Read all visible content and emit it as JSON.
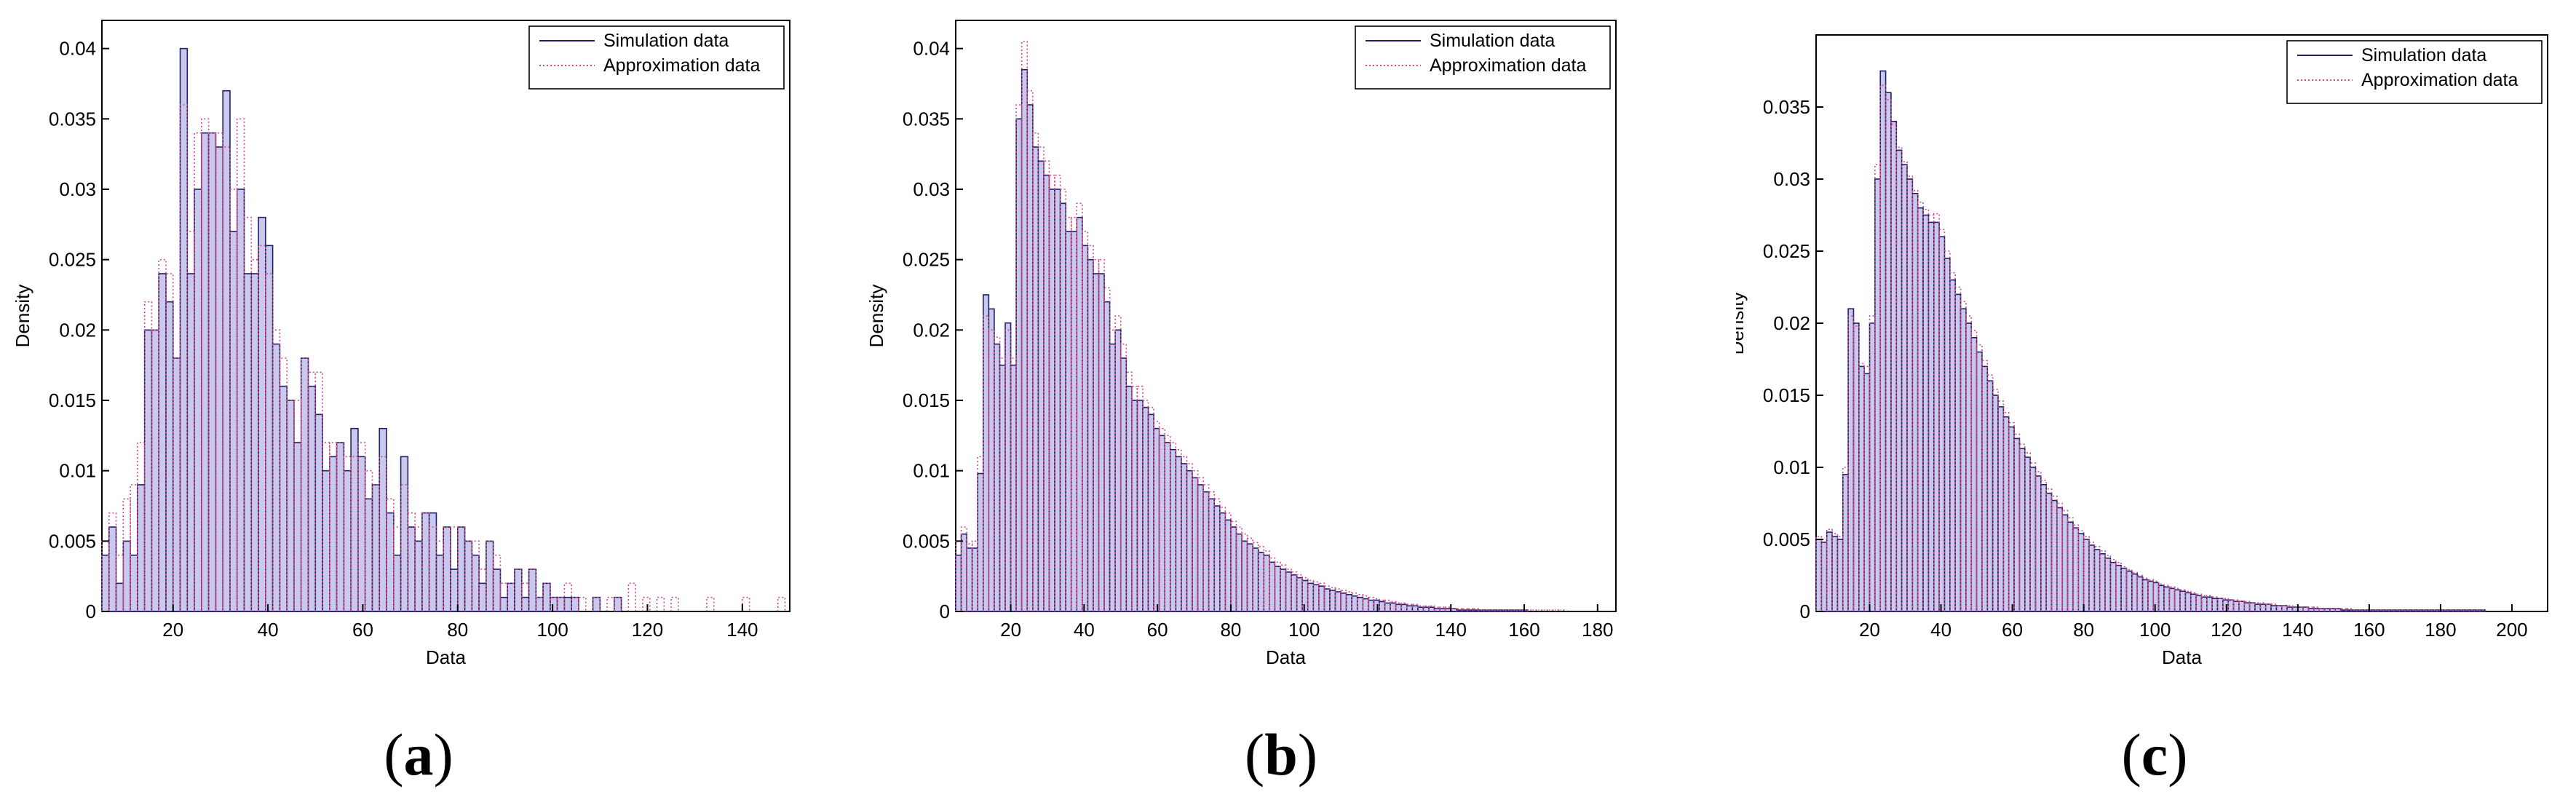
{
  "colors": {
    "simulation_edge": "#1f1f66",
    "simulation_fill": "#c9c9ee",
    "approximation": "#d04a8a",
    "axis": "#000000",
    "background": "#ffffff"
  },
  "chart_data": [
    {
      "type": "bar",
      "panel_label": "a",
      "xlabel": "Data",
      "ylabel": "Density",
      "xlim": [
        5,
        150
      ],
      "ylim": [
        0,
        0.042
      ],
      "xticks": [
        20,
        40,
        60,
        80,
        100,
        120,
        140
      ],
      "yticks": [
        0,
        0.005,
        0.01,
        0.015,
        0.02,
        0.025,
        0.03,
        0.035,
        0.04
      ],
      "ytick_labels": [
        "0",
        "0.005",
        "0.01",
        "0.015",
        "0.02",
        "0.025",
        "0.03",
        "0.035",
        "0.04"
      ],
      "grid": false,
      "legend_position": "top-right",
      "bin_start": 5,
      "bin_width": 1.5,
      "series": [
        {
          "name": "Simulation data",
          "style": "solid",
          "values": [
            0.004,
            0.006,
            0.002,
            0.005,
            0.004,
            0.009,
            0.02,
            0.02,
            0.024,
            0.022,
            0.018,
            0.04,
            0.024,
            0.03,
            0.034,
            0.034,
            0.033,
            0.037,
            0.027,
            0.03,
            0.024,
            0.024,
            0.028,
            0.026,
            0.019,
            0.016,
            0.015,
            0.012,
            0.018,
            0.016,
            0.014,
            0.01,
            0.011,
            0.012,
            0.01,
            0.013,
            0.011,
            0.008,
            0.009,
            0.013,
            0.007,
            0.004,
            0.011,
            0.006,
            0.005,
            0.007,
            0.007,
            0.004,
            0.006,
            0.003,
            0.006,
            0.005,
            0.004,
            0.002,
            0.005,
            0.003,
            0.001,
            0.002,
            0.003,
            0.001,
            0.003,
            0.001,
            0.002,
            0.001,
            0.001,
            0.001,
            0.001,
            0,
            0,
            0.001,
            0,
            0,
            0.001,
            0,
            0,
            0,
            0,
            0,
            0,
            0,
            0,
            0,
            0,
            0,
            0,
            0,
            0,
            0,
            0,
            0,
            0,
            0,
            0,
            0,
            0,
            0,
            0
          ]
        },
        {
          "name": "Approximation data",
          "style": "dotted",
          "values": [
            0.005,
            0.007,
            0.004,
            0.008,
            0.009,
            0.012,
            0.022,
            0.02,
            0.025,
            0.024,
            0.018,
            0.036,
            0.027,
            0.034,
            0.035,
            0.034,
            0.034,
            0.033,
            0.03,
            0.035,
            0.028,
            0.025,
            0.026,
            0.024,
            0.02,
            0.018,
            0.015,
            0.015,
            0.018,
            0.017,
            0.017,
            0.012,
            0.012,
            0.012,
            0.011,
            0.011,
            0.012,
            0.01,
            0.009,
            0.011,
            0.008,
            0.006,
            0.009,
            0.007,
            0.006,
            0.007,
            0.006,
            0.005,
            0.006,
            0.006,
            0.006,
            0.005,
            0.005,
            0.003,
            0.005,
            0.004,
            0.002,
            0.002,
            0.003,
            0.002,
            0.003,
            0.001,
            0.002,
            0.001,
            0.001,
            0.002,
            0.001,
            0.001,
            0,
            0.001,
            0,
            0.001,
            0.001,
            0,
            0.002,
            0,
            0.001,
            0,
            0.001,
            0,
            0.001,
            0,
            0,
            0,
            0,
            0.001,
            0,
            0,
            0,
            0,
            0.001,
            0,
            0,
            0,
            0,
            0.001,
            0
          ]
        }
      ]
    },
    {
      "type": "bar",
      "panel_label": "b",
      "xlabel": "Data",
      "ylabel": "Density",
      "xlim": [
        5,
        185
      ],
      "ylim": [
        0,
        0.042
      ],
      "xticks": [
        20,
        40,
        60,
        80,
        100,
        120,
        140,
        160,
        180
      ],
      "yticks": [
        0,
        0.005,
        0.01,
        0.015,
        0.02,
        0.025,
        0.03,
        0.035,
        0.04
      ],
      "ytick_labels": [
        "0",
        "0.005",
        "0.01",
        "0.015",
        "0.02",
        "0.025",
        "0.03",
        "0.035",
        "0.04"
      ],
      "grid": false,
      "legend_position": "top-right",
      "bin_start": 5,
      "bin_width": 1.5,
      "series": [
        {
          "name": "Simulation data",
          "style": "solid",
          "values": [
            0.004,
            0.0055,
            0.0045,
            0.0045,
            0.0098,
            0.0225,
            0.0215,
            0.019,
            0.0175,
            0.0205,
            0.0175,
            0.035,
            0.0385,
            0.036,
            0.033,
            0.032,
            0.031,
            0.03,
            0.03,
            0.029,
            0.027,
            0.027,
            0.028,
            0.026,
            0.025,
            0.024,
            0.024,
            0.022,
            0.019,
            0.02,
            0.018,
            0.016,
            0.015,
            0.015,
            0.0145,
            0.014,
            0.013,
            0.0125,
            0.012,
            0.0115,
            0.011,
            0.0105,
            0.01,
            0.0095,
            0.009,
            0.0085,
            0.008,
            0.0075,
            0.007,
            0.0065,
            0.006,
            0.0055,
            0.005,
            0.0048,
            0.0045,
            0.0042,
            0.004,
            0.0035,
            0.0032,
            0.003,
            0.0028,
            0.0026,
            0.0024,
            0.0022,
            0.002,
            0.0019,
            0.0018,
            0.0016,
            0.0015,
            0.0014,
            0.0013,
            0.0012,
            0.0011,
            0.001,
            0.0009,
            0.0008,
            0.0008,
            0.0007,
            0.0006,
            0.0006,
            0.0005,
            0.0005,
            0.0004,
            0.0004,
            0.0003,
            0.0003,
            0.0003,
            0.0002,
            0.0002,
            0.0002,
            0.0002,
            0.0001,
            0.0001,
            0.0001,
            0.0001,
            0.0001,
            0.0001,
            0.0001,
            0.0001,
            0.0001,
            0.0001,
            0.0001,
            0.0001,
            0.0001,
            0,
            0,
            0,
            0,
            0,
            0,
            0,
            0,
            0,
            0,
            0,
            0,
            0,
            0,
            0,
            0
          ]
        },
        {
          "name": "Approximation data",
          "style": "dotted",
          "values": [
            0.005,
            0.006,
            0.0048,
            0.005,
            0.011,
            0.021,
            0.02,
            0.0195,
            0.018,
            0.02,
            0.018,
            0.036,
            0.0405,
            0.037,
            0.034,
            0.033,
            0.032,
            0.031,
            0.031,
            0.03,
            0.028,
            0.028,
            0.029,
            0.027,
            0.026,
            0.025,
            0.025,
            0.023,
            0.02,
            0.021,
            0.019,
            0.017,
            0.016,
            0.016,
            0.015,
            0.0145,
            0.0135,
            0.013,
            0.0125,
            0.012,
            0.0115,
            0.011,
            0.0105,
            0.01,
            0.0095,
            0.009,
            0.0085,
            0.008,
            0.0074,
            0.007,
            0.0064,
            0.006,
            0.0055,
            0.0052,
            0.0049,
            0.0046,
            0.0043,
            0.0038,
            0.0035,
            0.0033,
            0.003,
            0.0028,
            0.0026,
            0.0024,
            0.0022,
            0.0021,
            0.002,
            0.0018,
            0.0017,
            0.0016,
            0.0015,
            0.0014,
            0.0013,
            0.0012,
            0.0011,
            0.001,
            0.0009,
            0.0008,
            0.0008,
            0.0007,
            0.0006,
            0.0006,
            0.0005,
            0.0005,
            0.0004,
            0.0004,
            0.0004,
            0.0003,
            0.0003,
            0.0003,
            0.0002,
            0.0002,
            0.0002,
            0.0002,
            0.0002,
            0.0001,
            0.0001,
            0.0001,
            0.0001,
            0.0001,
            0.0001,
            0.0001,
            0.0001,
            0.0001,
            0.0001,
            0.0001,
            0.0001,
            0.0001,
            0.0001,
            0.0001,
            0.0001,
            0,
            0,
            0,
            0,
            0,
            0,
            0,
            0,
            0
          ]
        }
      ]
    },
    {
      "type": "bar",
      "panel_label": "c",
      "xlabel": "Data",
      "ylabel": "Density",
      "xlim": [
        5,
        210
      ],
      "ylim": [
        0,
        0.04
      ],
      "xticks": [
        20,
        40,
        60,
        80,
        100,
        120,
        140,
        160,
        180,
        200
      ],
      "yticks": [
        0,
        0.005,
        0.01,
        0.015,
        0.02,
        0.025,
        0.03,
        0.035
      ],
      "ytick_labels": [
        "0",
        "0.005",
        "0.01",
        "0.015",
        "0.02",
        "0.025",
        "0.03",
        "0.035"
      ],
      "grid": false,
      "legend_position": "top-right",
      "bin_start": 5,
      "bin_width": 1.5,
      "series": [
        {
          "name": "Simulation data",
          "style": "solid",
          "values": [
            0.005,
            0.0048,
            0.0055,
            0.0052,
            0.005,
            0.0095,
            0.021,
            0.02,
            0.017,
            0.0165,
            0.02,
            0.03,
            0.0375,
            0.036,
            0.034,
            0.032,
            0.031,
            0.03,
            0.029,
            0.028,
            0.0275,
            0.027,
            0.027,
            0.026,
            0.0245,
            0.023,
            0.022,
            0.021,
            0.02,
            0.019,
            0.018,
            0.017,
            0.016,
            0.015,
            0.0142,
            0.0135,
            0.0128,
            0.012,
            0.0113,
            0.0107,
            0.01,
            0.0094,
            0.0088,
            0.0082,
            0.0077,
            0.0072,
            0.0067,
            0.0062,
            0.0058,
            0.0054,
            0.005,
            0.0046,
            0.0043,
            0.004,
            0.0037,
            0.0034,
            0.0032,
            0.003,
            0.0028,
            0.0026,
            0.0024,
            0.0022,
            0.0021,
            0.002,
            0.0018,
            0.0017,
            0.0016,
            0.0015,
            0.0014,
            0.0013,
            0.0012,
            0.0011,
            0.001,
            0.001,
            0.0009,
            0.0009,
            0.0008,
            0.0008,
            0.0007,
            0.0007,
            0.0006,
            0.0006,
            0.0005,
            0.0005,
            0.0005,
            0.0004,
            0.0004,
            0.0004,
            0.0003,
            0.0003,
            0.0003,
            0.0003,
            0.0002,
            0.0002,
            0.0002,
            0.0002,
            0.0002,
            0.0002,
            0.0001,
            0.0001,
            0.0001,
            0.0001,
            0.0001,
            0.0001,
            0.0001,
            0.0001,
            0.0001,
            0.0001,
            0.0001,
            0.0001,
            0.0001,
            0.0001,
            0.0001,
            0.0001,
            0.0001,
            0.0001,
            0.0001,
            0.0001,
            0.0001,
            0.0001,
            0.0001,
            0.0001,
            0.0001,
            0.0001,
            0.0001,
            0,
            0,
            0,
            0,
            0,
            0,
            0,
            0,
            0,
            0,
            0,
            0,
            0
          ]
        },
        {
          "name": "Approximation data",
          "style": "dotted",
          "values": [
            0.0052,
            0.005,
            0.0057,
            0.0054,
            0.0052,
            0.01,
            0.0205,
            0.0198,
            0.0172,
            0.017,
            0.0205,
            0.031,
            0.0365,
            0.0355,
            0.0338,
            0.0322,
            0.0312,
            0.0302,
            0.0292,
            0.0284,
            0.0279,
            0.0275,
            0.0276,
            0.0265,
            0.025,
            0.0235,
            0.0225,
            0.0215,
            0.0205,
            0.0195,
            0.0185,
            0.0174,
            0.0164,
            0.0154,
            0.0146,
            0.0138,
            0.0131,
            0.0123,
            0.0116,
            0.011,
            0.0103,
            0.0097,
            0.0091,
            0.0085,
            0.008,
            0.0075,
            0.007,
            0.0065,
            0.006,
            0.0056,
            0.0052,
            0.0048,
            0.0045,
            0.0042,
            0.0039,
            0.0036,
            0.0034,
            0.0031,
            0.0029,
            0.0027,
            0.0025,
            0.0023,
            0.0022,
            0.0021,
            0.0019,
            0.0018,
            0.0017,
            0.0016,
            0.0015,
            0.0014,
            0.0013,
            0.0012,
            0.0011,
            0.0011,
            0.001,
            0.0009,
            0.0009,
            0.0008,
            0.0008,
            0.0007,
            0.0007,
            0.0006,
            0.0006,
            0.0006,
            0.0005,
            0.0005,
            0.0004,
            0.0004,
            0.0004,
            0.0003,
            0.0003,
            0.0003,
            0.0003,
            0.0003,
            0.0002,
            0.0002,
            0.0002,
            0.0002,
            0.0002,
            0.0002,
            0.0001,
            0.0001,
            0.0001,
            0.0001,
            0.0001,
            0.0001,
            0.0001,
            0.0001,
            0.0001,
            0.0001,
            0.0001,
            0.0001,
            0.0001,
            0.0001,
            0.0001,
            0.0001,
            0.0001,
            0.0001,
            0.0001,
            0.0001,
            0.0001,
            0.0001,
            0.0001,
            0.0001,
            0.0001,
            0,
            0,
            0,
            0,
            0,
            0,
            0,
            0,
            0,
            0,
            0,
            0,
            0,
            0
          ]
        }
      ]
    }
  ]
}
